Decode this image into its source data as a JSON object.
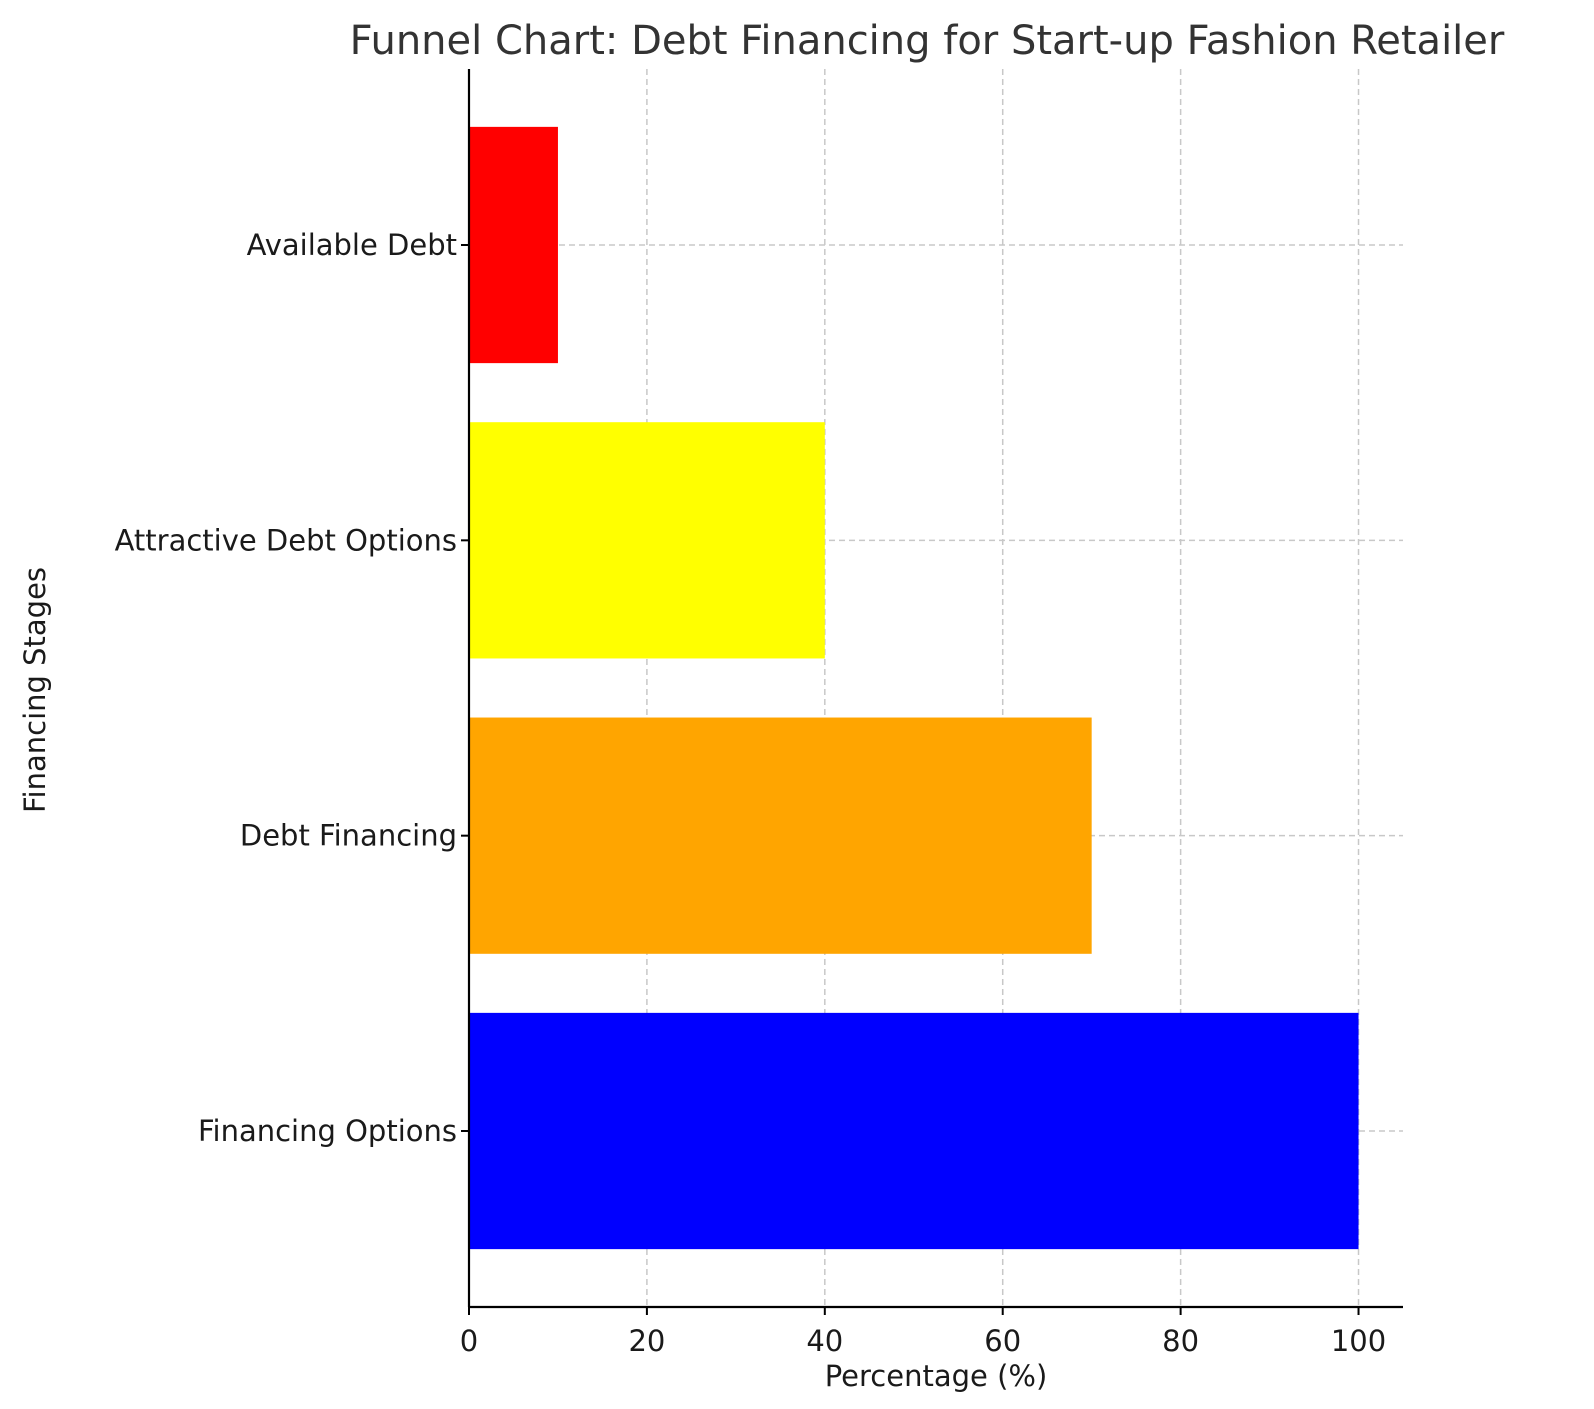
{
  "chart_data": {
    "type": "bar",
    "orientation": "horizontal",
    "title": "Funnel Chart: Debt Financing for Start-up Fashion Retailer",
    "xlabel": "Percentage (%)",
    "ylabel": "Financing Stages",
    "categories": [
      "Financing Options",
      "Debt Financing",
      "Attractive Debt Options",
      "Available Debt"
    ],
    "values": [
      100,
      70,
      40,
      10
    ],
    "colors": [
      "#0000ff",
      "#ffa500",
      "#ffff00",
      "#ff0000"
    ],
    "xlim": [
      0,
      105
    ],
    "xticks": [
      "0",
      "20",
      "40",
      "60",
      "80",
      "100"
    ],
    "grid": true
  }
}
